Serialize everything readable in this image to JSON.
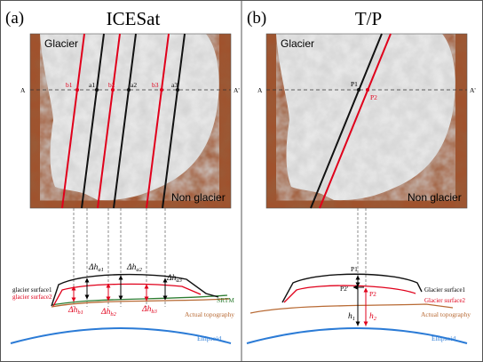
{
  "panels": [
    {
      "label": "(a)",
      "title": "ICESat",
      "glacier_label": "Glacier",
      "non_glacier_label": "Non glacier",
      "section_start": "A",
      "section_end": "A'",
      "red_points": [
        "b1",
        "b2",
        "b3"
      ],
      "black_points": [
        "a1",
        "a2",
        "a3"
      ],
      "dh_black": [
        "Δh",
        "Δh",
        "Δh"
      ],
      "dh_black_sub": [
        "a1",
        "a2",
        "a3"
      ],
      "dh_red": [
        "Δh",
        "Δh",
        "Δh"
      ],
      "dh_red_sub": [
        "b1",
        "b2",
        "b3"
      ],
      "surface1_label": "glacier surface1",
      "surface2_label": "glacier surface2",
      "srtm_label": "SRTM",
      "topography_label": "Actual topography",
      "ellipsoid_label": "Ellipsoid"
    },
    {
      "label": "(b)",
      "title": "T/P",
      "glacier_label": "Glacier",
      "non_glacier_label": "Non glacier",
      "section_start": "A",
      "section_end": "A'",
      "point_black": "P1",
      "point_red": "P2",
      "profile_p1": "P1",
      "profile_p2_prime": "P2'",
      "profile_p2": "P2",
      "h1": "h",
      "h1_sub": "1",
      "h2": "h",
      "h2_sub": "2",
      "surface1_label": "Glacier surface1",
      "surface2_label": "Glacier surface2",
      "topography_label": "Actual topography",
      "ellipsoid_label": "Ellipsoid"
    }
  ],
  "colors": {
    "rock": "#a0522d",
    "rock_dark": "#7a3a1c",
    "glacier": "#e9e9e9",
    "red_track": "#e0001b",
    "black_track": "#111111",
    "srtm": "#2e7d32",
    "topography": "#b86a34",
    "ellipsoid": "#2b7bd6"
  }
}
